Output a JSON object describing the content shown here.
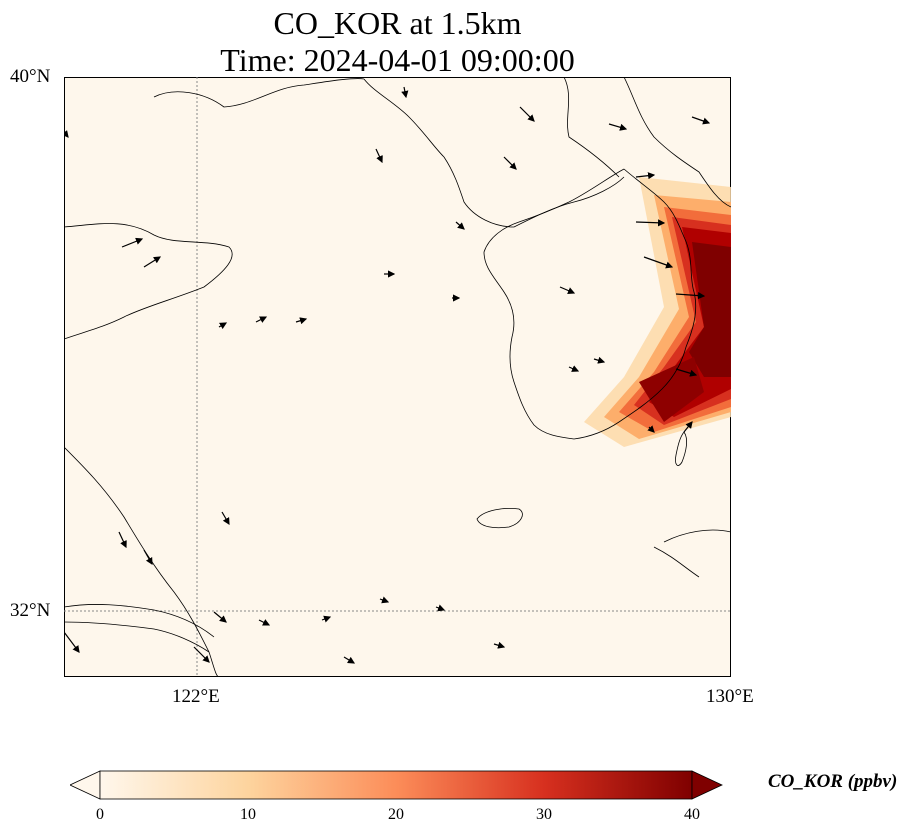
{
  "title": {
    "line1": "CO_KOR at 1.5km",
    "line2": "Time: 2024-04-01 09:00:00"
  },
  "map": {
    "lat_labels": [
      "40°N",
      "32°N"
    ],
    "lon_labels": [
      "122°E",
      "130°E"
    ],
    "extent": {
      "lon_min": 120,
      "lon_max": 130,
      "lat_min": 31,
      "lat_max": 40
    },
    "gridlines": "dotted",
    "colormap": "OrRd",
    "wind_vectors": true
  },
  "colorbar": {
    "label": "CO_KOR (ppbv)",
    "ticks": [
      "0",
      "10",
      "20",
      "30",
      "40"
    ],
    "range": [
      0,
      40
    ],
    "extend": "both",
    "colors": [
      "#fff7ec",
      "#fdd49e",
      "#fc8d59",
      "#d7301f",
      "#7f0000"
    ]
  }
}
